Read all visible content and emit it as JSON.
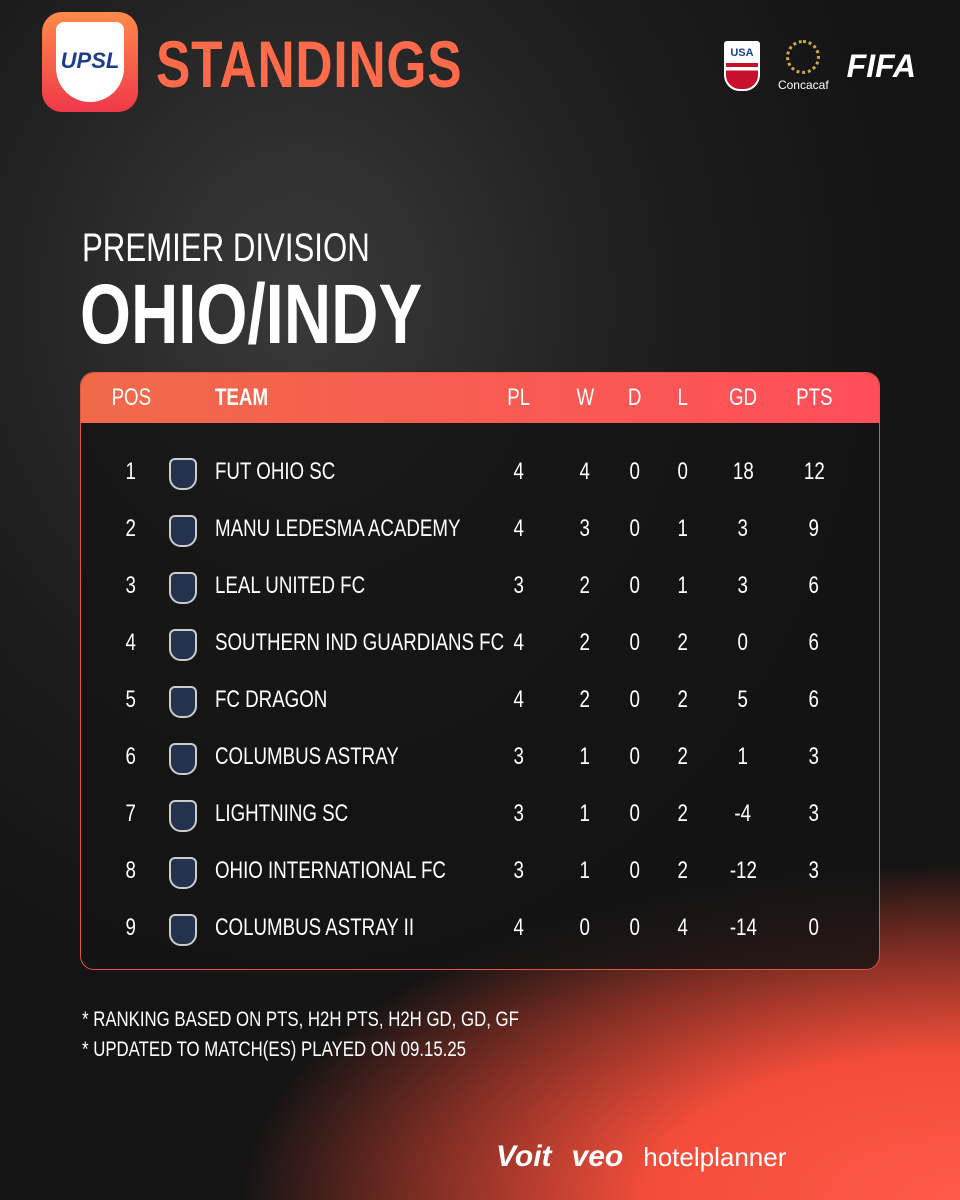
{
  "header": {
    "logo": "UPSL",
    "title": "STANDINGS",
    "partners": [
      "USA",
      "Concacaf",
      "FIFA"
    ]
  },
  "division": {
    "subtitle": "PREMIER DIVISION",
    "title": "OHIO/INDY"
  },
  "table": {
    "columns": [
      "POS",
      "TEAM",
      "PL",
      "W",
      "D",
      "L",
      "GD",
      "PTS"
    ],
    "rows": [
      [
        1,
        "FUT OHIO SC",
        4,
        4,
        0,
        0,
        18,
        12
      ],
      [
        2,
        "MANU LEDESMA ACADEMY",
        4,
        3,
        0,
        1,
        3,
        9
      ],
      [
        3,
        "LEAL UNITED FC",
        3,
        2,
        0,
        1,
        3,
        6
      ],
      [
        4,
        "SOUTHERN IND GUARDIANS FC",
        4,
        2,
        0,
        2,
        0,
        6
      ],
      [
        5,
        "FC DRAGON",
        4,
        2,
        0,
        2,
        5,
        6
      ],
      [
        6,
        "COLUMBUS ASTRAY",
        3,
        1,
        0,
        2,
        1,
        3
      ],
      [
        7,
        "LIGHTNING SC",
        3,
        1,
        0,
        2,
        -4,
        3
      ],
      [
        8,
        "OHIO INTERNATIONAL FC",
        3,
        1,
        0,
        2,
        -12,
        3
      ],
      [
        9,
        "COLUMBUS ASTRAY II",
        4,
        0,
        0,
        4,
        -14,
        0
      ]
    ]
  },
  "notes": [
    "* RANKING BASED ON PTS, H2H PTS, H2H GD, GD, GF",
    "* UPDATED TO MATCH(ES) PLAYED ON 09.15.25"
  ],
  "sponsors": [
    "Voit",
    "veo",
    "hotelplanner"
  ]
}
